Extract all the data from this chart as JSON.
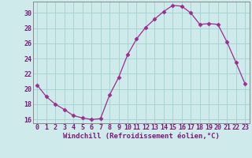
{
  "x": [
    0,
    1,
    2,
    3,
    4,
    5,
    6,
    7,
    8,
    9,
    10,
    11,
    12,
    13,
    14,
    15,
    16,
    17,
    18,
    19,
    20,
    21,
    22,
    23
  ],
  "y": [
    20.5,
    19.0,
    18.0,
    17.3,
    16.5,
    16.2,
    16.0,
    16.1,
    19.2,
    21.5,
    24.5,
    26.6,
    28.1,
    29.2,
    30.2,
    31.0,
    30.9,
    30.0,
    28.5,
    28.6,
    28.5,
    26.2,
    23.5,
    20.7
  ],
  "line_color": "#9b2d8e",
  "marker": "D",
  "marker_size": 2.5,
  "bg_color": "#ceeaea",
  "grid_color": "#a8d4d4",
  "xlabel": "Windchill (Refroidissement éolien,°C)",
  "xlabel_color": "#7b1a7a",
  "tick_color": "#7b1a7a",
  "spine_color": "#888888",
  "ylim": [
    15.5,
    31.5
  ],
  "yticks": [
    16,
    18,
    20,
    22,
    24,
    26,
    28,
    30
  ],
  "xlim": [
    -0.5,
    23.5
  ],
  "axis_label_fontsize": 6.5,
  "tick_fontsize": 6.0
}
